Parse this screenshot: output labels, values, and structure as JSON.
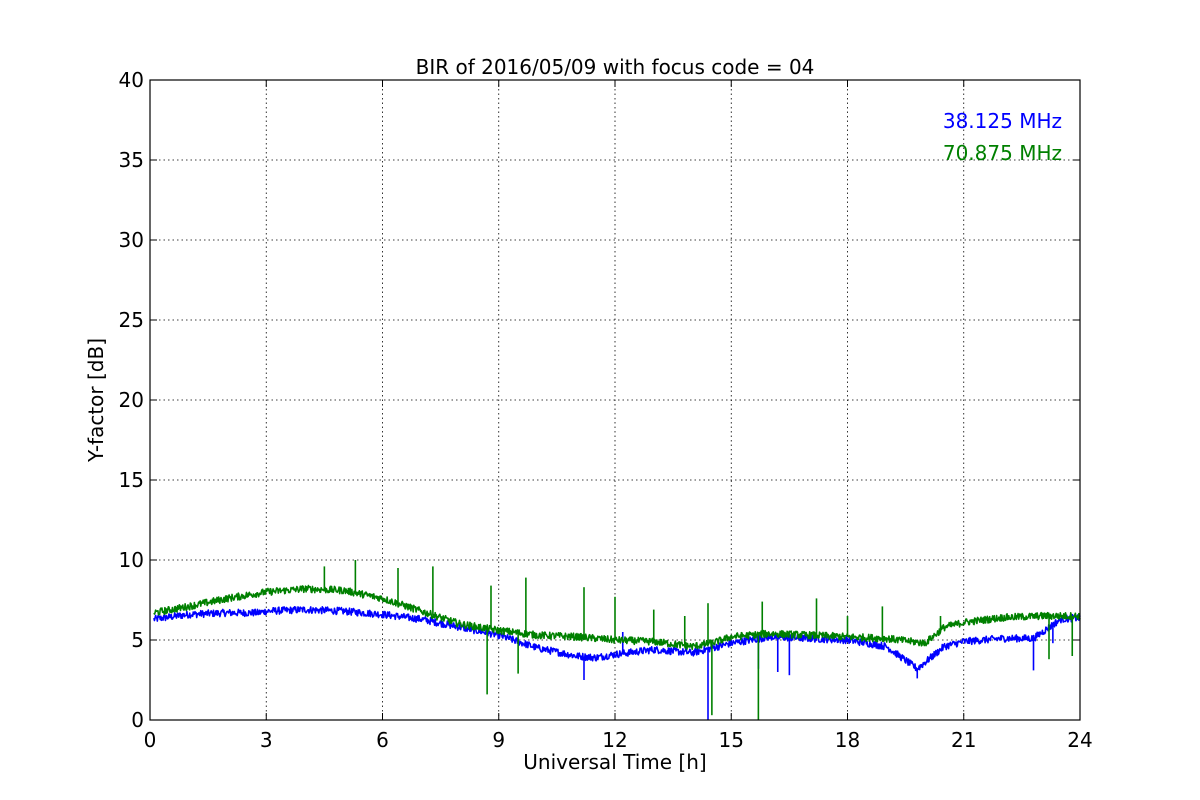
{
  "chart_data": {
    "type": "line",
    "title": "BIR of 2016/05/09 with focus code = 04",
    "xlabel": "Universal Time [h]",
    "ylabel": "Y-factor [dB]",
    "xlim": [
      0,
      24
    ],
    "ylim": [
      0,
      40
    ],
    "xticks": [
      0,
      3,
      6,
      9,
      12,
      15,
      18,
      21,
      24
    ],
    "yticks": [
      0,
      5,
      10,
      15,
      20,
      25,
      30,
      35,
      40
    ],
    "grid": true,
    "legend_position": "top-right",
    "series": [
      {
        "name": "38.125 MHz",
        "color": "#0000ff",
        "x": [
          0.1,
          1,
          2,
          2.8,
          3,
          4,
          5,
          6,
          7,
          8,
          9,
          10,
          11,
          11.5,
          12,
          13,
          14,
          15,
          16,
          17,
          18,
          19,
          19.8,
          20.5,
          21,
          22,
          22.8,
          23.5,
          24
        ],
        "y": [
          6.3,
          6.6,
          6.7,
          6.7,
          6.8,
          6.9,
          6.8,
          6.6,
          6.3,
          5.8,
          5.3,
          4.5,
          4.0,
          3.9,
          4.1,
          4.4,
          4.2,
          4.8,
          5.2,
          5.1,
          5.0,
          4.6,
          3.2,
          4.6,
          4.9,
          5.1,
          5.1,
          6.3,
          6.4
        ],
        "spikes": [
          [
            11.2,
            2.5
          ],
          [
            12.2,
            5.5
          ],
          [
            14.4,
            0
          ],
          [
            15.7,
            3.2
          ],
          [
            16.2,
            3.0
          ],
          [
            16.5,
            2.8
          ],
          [
            19.8,
            2.6
          ],
          [
            22.8,
            3.1
          ],
          [
            23.3,
            4.8
          ]
        ]
      },
      {
        "name": "70.875 MHz",
        "color": "#008000",
        "x": [
          0.1,
          1,
          2,
          3,
          4,
          5,
          6,
          7,
          8,
          9,
          10,
          11,
          12,
          13,
          14,
          14.5,
          15,
          16,
          17,
          18,
          19,
          20,
          20.5,
          21,
          22,
          23,
          24
        ],
        "y": [
          6.7,
          7.1,
          7.6,
          8.0,
          8.2,
          8.1,
          7.6,
          6.8,
          6.0,
          5.6,
          5.3,
          5.2,
          5.0,
          4.9,
          4.6,
          4.8,
          5.2,
          5.4,
          5.3,
          5.2,
          5.1,
          4.8,
          5.8,
          6.1,
          6.4,
          6.5,
          6.5
        ],
        "spikes": [
          [
            4.5,
            9.6
          ],
          [
            5.3,
            10.0
          ],
          [
            6.4,
            9.5
          ],
          [
            7.3,
            9.6
          ],
          [
            8.7,
            1.6
          ],
          [
            8.8,
            8.4
          ],
          [
            9.5,
            2.9
          ],
          [
            9.7,
            8.9
          ],
          [
            11.2,
            8.3
          ],
          [
            12.0,
            7.7
          ],
          [
            13.0,
            6.9
          ],
          [
            13.8,
            6.5
          ],
          [
            14.4,
            7.3
          ],
          [
            14.5,
            0.3
          ],
          [
            15.7,
            0
          ],
          [
            15.8,
            7.4
          ],
          [
            17.2,
            7.6
          ],
          [
            18.0,
            6.5
          ],
          [
            18.9,
            7.1
          ],
          [
            20.4,
            6.5
          ],
          [
            23.2,
            3.8
          ],
          [
            23.8,
            4.0
          ]
        ]
      }
    ]
  }
}
